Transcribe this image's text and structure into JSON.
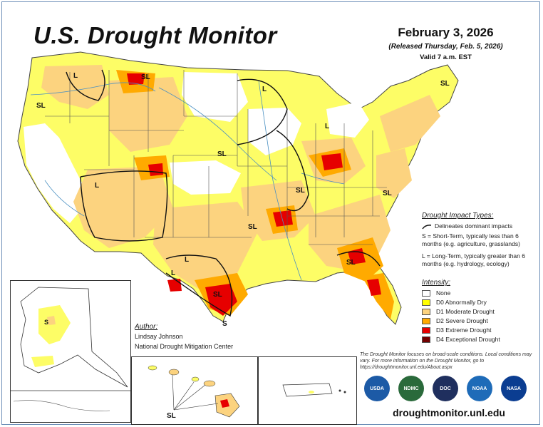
{
  "title": "U.S. Drought Monitor",
  "date": "February 3, 2026",
  "released": "(Released Thursday, Feb. 5, 2026)",
  "valid": "Valid 7 a.m. EST",
  "impact_types": {
    "heading": "Drought Impact Types:",
    "delineates": "Delineates dominant impacts",
    "short_term": "S = Short-Term, typically less than 6 months (e.g. agriculture, grasslands)",
    "long_term": "L = Long-Term, typically greater than 6 months (e.g. hydrology, ecology)"
  },
  "intensity": {
    "heading": "Intensity:",
    "levels": [
      {
        "label": "None",
        "color": "#ffffff"
      },
      {
        "label": "D0 Abnormally Dry",
        "color": "#ffff00"
      },
      {
        "label": "D1 Moderate Drought",
        "color": "#fcd37f"
      },
      {
        "label": "D2 Severe Drought",
        "color": "#ffaa00"
      },
      {
        "label": "D3 Extreme Drought",
        "color": "#e60000"
      },
      {
        "label": "D4 Exceptional Drought",
        "color": "#730000"
      }
    ]
  },
  "author": {
    "label": "Author:",
    "name": "Lindsay Johnson",
    "org": "National Drought Mitigation Center"
  },
  "note": "The Drought Monitor focuses on broad-scale conditions. Local conditions may vary. For more information on the Drought Monitor, go to https://droughtmonitor.unl.edu/About.aspx",
  "url": "droughtmonitor.unl.edu",
  "map_labels": {
    "sl": "SL",
    "l": "L",
    "s": "S"
  },
  "logos": [
    {
      "name": "USDA",
      "color": "#1c5aa6"
    },
    {
      "name": "NDMC",
      "color": "#2a6a3b"
    },
    {
      "name": "DOC",
      "color": "#1f2f5e"
    },
    {
      "name": "NOAA",
      "color": "#1e6bb8"
    },
    {
      "name": "NASA",
      "color": "#0b3d91"
    }
  ],
  "colors": {
    "state_line": "#555555",
    "river": "#4a90c2",
    "impact_line": "#111111"
  }
}
